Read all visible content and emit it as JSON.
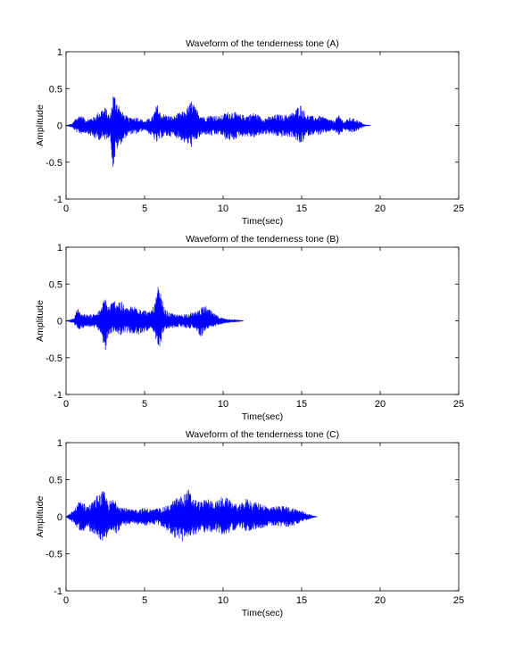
{
  "colors": {
    "waveform": "#0000ff",
    "axes": "#000000",
    "background": "#ffffff"
  },
  "chart_data": [
    {
      "type": "line",
      "title": "Waveform of the tenderness tone (A)",
      "xlabel": "Time(sec)",
      "ylabel": "Amplitude",
      "xlim": [
        0,
        25
      ],
      "ylim": [
        -1,
        1
      ],
      "xticks": [
        0,
        5,
        10,
        15,
        20,
        25
      ],
      "yticks": [
        -1,
        -0.5,
        0,
        0.5,
        1
      ],
      "xtick_labels": [
        "0",
        "5",
        "10",
        "15",
        "20",
        "25"
      ],
      "ytick_labels": [
        "-1",
        "-0.5",
        "0",
        "0.5",
        "1"
      ],
      "grid": false,
      "series": [
        {
          "color": "#0000ff",
          "envelope": {
            "x": [
              0,
              0.4,
              0.6,
              0.9,
              1.3,
              1.8,
              2.2,
              2.5,
              2.8,
              3.0,
              3.2,
              3.5,
              4.0,
              4.5,
              5.0,
              5.5,
              5.8,
              6.0,
              6.3,
              6.8,
              7.2,
              7.6,
              8.0,
              8.3,
              8.8,
              9.3,
              9.8,
              10.2,
              10.6,
              11.0,
              11.5,
              12.0,
              12.5,
              13.0,
              13.4,
              13.9,
              14.5,
              14.9,
              15.3,
              15.8,
              16.2,
              16.6,
              17.0,
              17.4,
              17.7,
              18.0,
              18.4,
              18.8,
              19.0,
              19.4
            ],
            "upper": [
              0,
              0.02,
              0.1,
              0.15,
              0.08,
              0.12,
              0.22,
              0.25,
              0.12,
              0.45,
              0.4,
              0.2,
              0.1,
              0.12,
              0.06,
              0.12,
              0.3,
              0.18,
              0.15,
              0.12,
              0.17,
              0.2,
              0.35,
              0.22,
              0.12,
              0.15,
              0.12,
              0.18,
              0.2,
              0.15,
              0.14,
              0.18,
              0.1,
              0.12,
              0.15,
              0.14,
              0.18,
              0.3,
              0.15,
              0.12,
              0.13,
              0.1,
              0.06,
              0.14,
              0.05,
              0.1,
              0.09,
              0.04,
              0.01,
              0.0
            ],
            "lower": [
              0,
              -0.03,
              -0.08,
              -0.12,
              -0.1,
              -0.18,
              -0.2,
              -0.2,
              -0.15,
              -0.62,
              -0.35,
              -0.25,
              -0.12,
              -0.12,
              -0.06,
              -0.16,
              -0.25,
              -0.18,
              -0.15,
              -0.15,
              -0.18,
              -0.25,
              -0.3,
              -0.2,
              -0.12,
              -0.15,
              -0.12,
              -0.2,
              -0.22,
              -0.15,
              -0.15,
              -0.17,
              -0.12,
              -0.12,
              -0.15,
              -0.16,
              -0.16,
              -0.28,
              -0.15,
              -0.12,
              -0.13,
              -0.1,
              -0.07,
              -0.14,
              -0.06,
              -0.1,
              -0.09,
              -0.04,
              -0.01,
              0.0
            ]
          }
        }
      ]
    },
    {
      "type": "line",
      "title": "Waveform of the tenderness tone (B)",
      "xlabel": "Time(sec)",
      "ylabel": "Amplitude",
      "xlim": [
        0,
        25
      ],
      "ylim": [
        -1,
        1
      ],
      "xticks": [
        0,
        5,
        10,
        15,
        20,
        25
      ],
      "yticks": [
        -1,
        -0.5,
        0,
        0.5,
        1
      ],
      "xtick_labels": [
        "0",
        "5",
        "10",
        "15",
        "20",
        "25"
      ],
      "ytick_labels": [
        "-1",
        "-0.5",
        "0",
        "0.5",
        "1"
      ],
      "grid": false,
      "series": [
        {
          "color": "#0000ff",
          "envelope": {
            "x": [
              0,
              0.5,
              0.7,
              1.0,
              1.4,
              1.8,
              2.2,
              2.5,
              2.7,
              3.0,
              3.4,
              3.8,
              4.2,
              4.6,
              5.0,
              5.3,
              5.6,
              5.9,
              6.1,
              6.3,
              6.7,
              7.2,
              7.7,
              8.2,
              8.6,
              8.9,
              9.3,
              9.7,
              10.1,
              10.5,
              11.0,
              11.3
            ],
            "upper": [
              0,
              0.03,
              0.18,
              0.1,
              0.08,
              0.1,
              0.15,
              0.35,
              0.2,
              0.28,
              0.3,
              0.18,
              0.2,
              0.22,
              0.15,
              0.12,
              0.2,
              0.5,
              0.3,
              0.15,
              0.1,
              0.08,
              0.1,
              0.12,
              0.18,
              0.2,
              0.12,
              0.06,
              0.03,
              0.02,
              0.01,
              0.0
            ],
            "lower": [
              0,
              -0.03,
              -0.12,
              -0.1,
              -0.08,
              -0.1,
              -0.15,
              -0.45,
              -0.2,
              -0.15,
              -0.2,
              -0.15,
              -0.18,
              -0.2,
              -0.15,
              -0.12,
              -0.2,
              -0.4,
              -0.25,
              -0.12,
              -0.1,
              -0.08,
              -0.1,
              -0.1,
              -0.22,
              -0.12,
              -0.1,
              -0.05,
              -0.03,
              -0.02,
              -0.01,
              0.0
            ]
          }
        }
      ]
    },
    {
      "type": "line",
      "title": "Waveform of the tenderness tone (C)",
      "xlabel": "Time(sec)",
      "ylabel": "Amplitude",
      "xlim": [
        0,
        25
      ],
      "ylim": [
        -1,
        1
      ],
      "xticks": [
        0,
        5,
        10,
        15,
        20,
        25
      ],
      "yticks": [
        -1,
        -0.5,
        0,
        0.5,
        1
      ],
      "xtick_labels": [
        "0",
        "5",
        "10",
        "15",
        "20",
        "25"
      ],
      "ytick_labels": [
        "-1",
        "-0.5",
        "0",
        "0.5",
        "1"
      ],
      "grid": false,
      "series": [
        {
          "color": "#0000ff",
          "envelope": {
            "x": [
              0,
              0.3,
              0.6,
              0.9,
              1.3,
              1.7,
              2.0,
              2.4,
              2.7,
              3.1,
              3.5,
              4.0,
              4.5,
              5.0,
              5.5,
              6.0,
              6.5,
              7.0,
              7.5,
              7.8,
              8.1,
              8.6,
              9.0,
              9.5,
              10.0,
              10.5,
              11.0,
              11.5,
              12.0,
              12.5,
              13.0,
              13.5,
              14.0,
              14.5,
              15.0,
              15.4,
              15.8,
              16.0
            ],
            "upper": [
              0,
              0.05,
              0.12,
              0.25,
              0.15,
              0.2,
              0.3,
              0.35,
              0.2,
              0.25,
              0.15,
              0.1,
              0.1,
              0.12,
              0.1,
              0.12,
              0.15,
              0.25,
              0.3,
              0.38,
              0.25,
              0.2,
              0.25,
              0.2,
              0.28,
              0.22,
              0.15,
              0.25,
              0.2,
              0.18,
              0.12,
              0.15,
              0.14,
              0.12,
              0.08,
              0.04,
              0.01,
              0.0
            ],
            "lower": [
              0,
              -0.05,
              -0.12,
              -0.2,
              -0.18,
              -0.22,
              -0.25,
              -0.38,
              -0.2,
              -0.25,
              -0.15,
              -0.1,
              -0.1,
              -0.12,
              -0.1,
              -0.12,
              -0.2,
              -0.3,
              -0.35,
              -0.32,
              -0.25,
              -0.2,
              -0.22,
              -0.2,
              -0.25,
              -0.2,
              -0.15,
              -0.2,
              -0.18,
              -0.15,
              -0.12,
              -0.13,
              -0.14,
              -0.12,
              -0.08,
              -0.04,
              -0.01,
              0.0
            ]
          }
        }
      ]
    }
  ]
}
